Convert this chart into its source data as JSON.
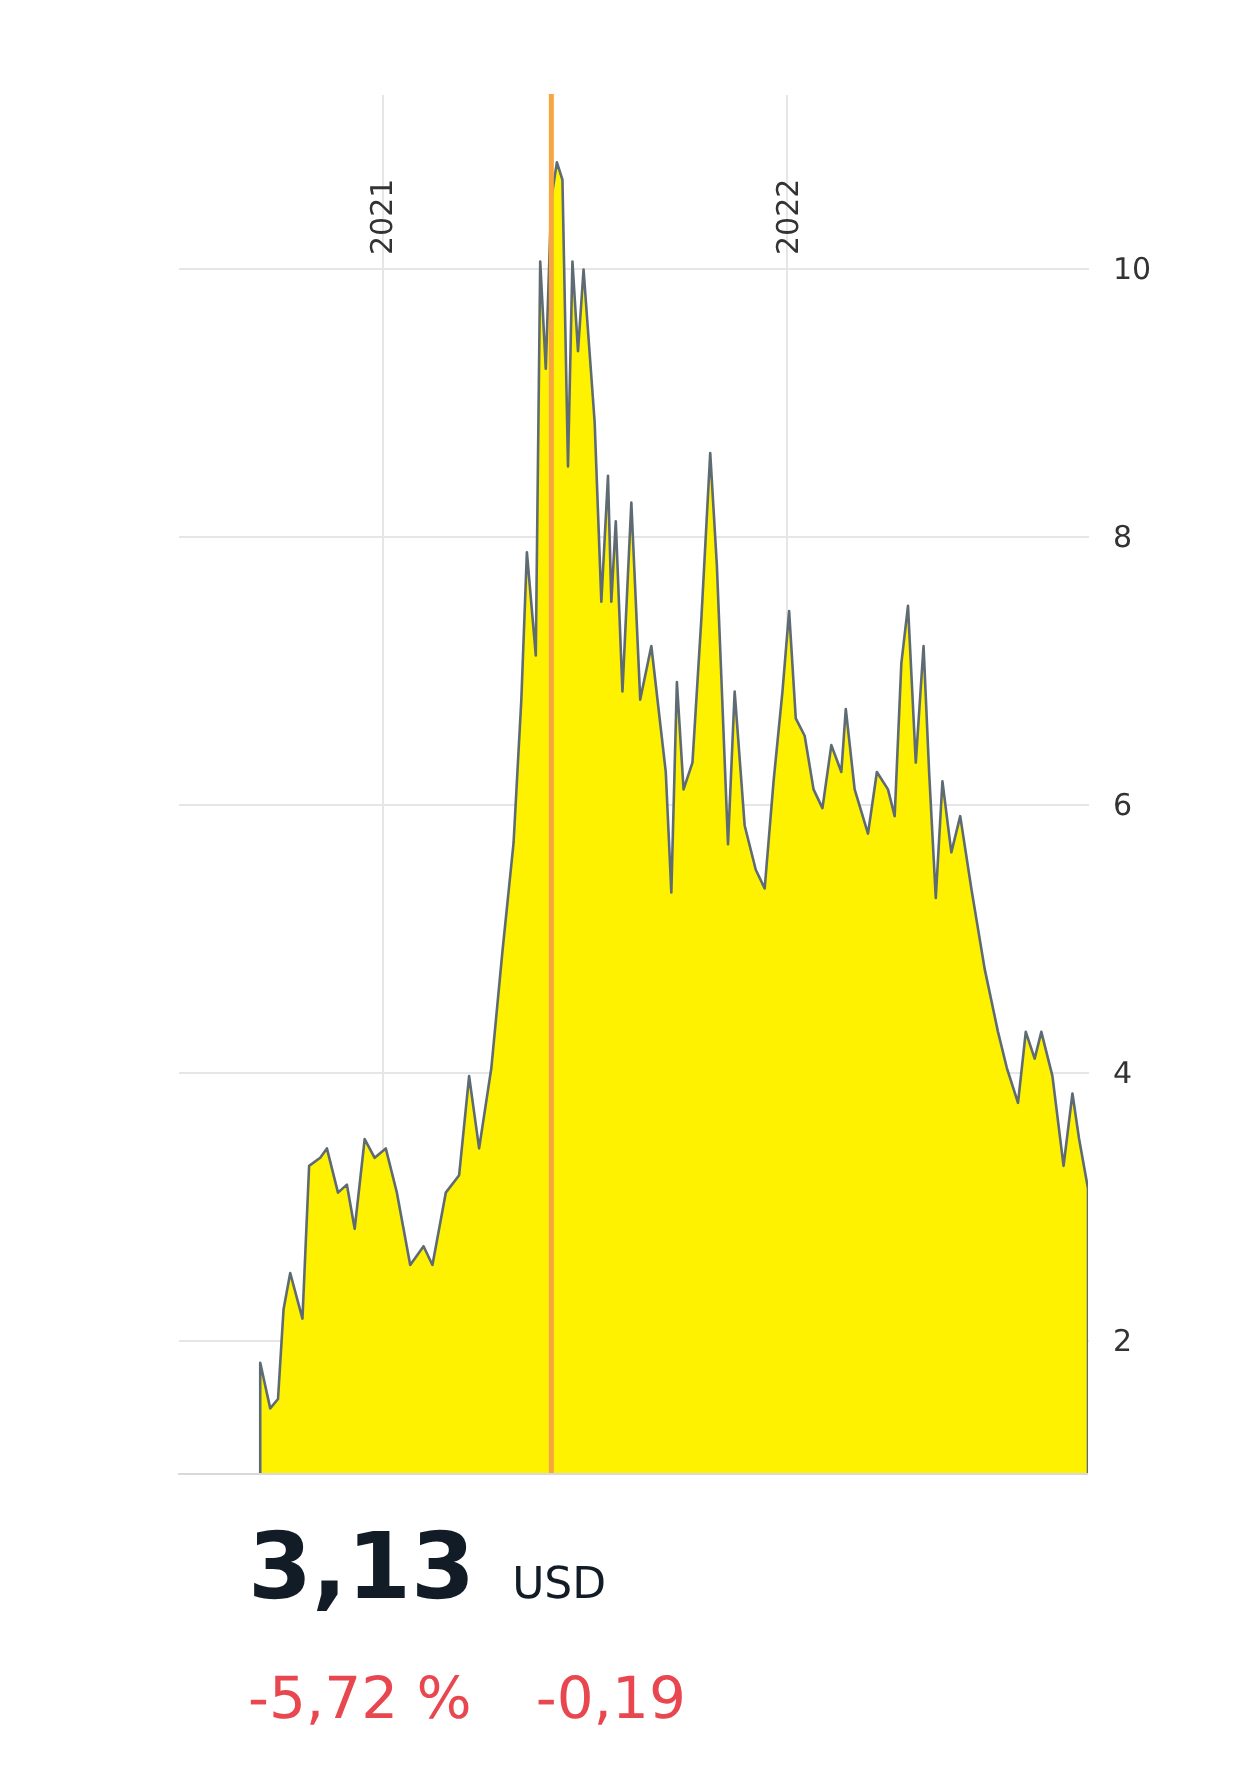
{
  "chart_data": {
    "type": "area",
    "x": [
      "2020-09-14",
      "2020-09-23",
      "2020-09-30",
      "2020-10-05",
      "2020-10-11",
      "2020-10-22",
      "2020-10-28",
      "2020-11-07",
      "2020-11-13",
      "2020-11-23",
      "2020-12-01",
      "2020-12-08",
      "2020-12-17",
      "2020-12-26",
      "2021-01-05",
      "2021-01-15",
      "2021-01-27",
      "2021-02-08",
      "2021-02-16",
      "2021-02-28",
      "2021-03-12",
      "2021-03-21",
      "2021-03-30",
      "2021-04-10",
      "2021-04-20",
      "2021-04-30",
      "2021-05-07",
      "2021-05-12",
      "2021-05-20",
      "2021-05-24",
      "2021-05-29",
      "2021-06-03",
      "2021-06-08",
      "2021-06-13",
      "2021-06-18",
      "2021-06-22",
      "2021-06-27",
      "2021-07-02",
      "2021-07-12",
      "2021-07-18",
      "2021-07-24",
      "2021-07-27",
      "2021-07-31",
      "2021-08-06",
      "2021-08-14",
      "2021-08-22",
      "2021-09-01",
      "2021-09-14",
      "2021-09-19",
      "2021-09-24",
      "2021-09-30",
      "2021-10-08",
      "2021-10-16",
      "2021-10-24",
      "2021-10-30",
      "2021-11-09",
      "2021-11-15",
      "2021-11-24",
      "2021-12-04",
      "2021-12-12",
      "2021-12-20",
      "2021-12-28",
      "2022-01-03",
      "2022-01-09",
      "2022-01-17",
      "2022-01-25",
      "2022-02-02",
      "2022-02-10",
      "2022-02-19",
      "2022-02-23",
      "2022-03-03",
      "2022-03-15",
      "2022-03-23",
      "2022-04-02",
      "2022-04-08",
      "2022-04-14",
      "2022-04-20",
      "2022-04-27",
      "2022-05-04",
      "2022-05-09",
      "2022-05-15",
      "2022-05-21",
      "2022-05-29",
      "2022-06-06",
      "2022-06-16",
      "2022-06-28",
      "2022-07-10",
      "2022-07-18",
      "2022-07-28",
      "2022-08-04",
      "2022-08-12",
      "2022-08-18",
      "2022-08-28",
      "2022-09-07",
      "2022-09-15",
      "2022-09-21",
      "2022-09-29"
    ],
    "series": [
      {
        "color": "#fff200",
        "values": [
          1.83,
          1.49,
          1.56,
          2.23,
          2.5,
          2.16,
          3.3,
          3.36,
          3.43,
          3.1,
          3.16,
          2.83,
          3.5,
          3.36,
          3.43,
          3.1,
          2.56,
          2.7,
          2.56,
          3.1,
          3.23,
          3.97,
          3.43,
          4.03,
          4.9,
          5.71,
          6.78,
          7.88,
          7.11,
          10.05,
          9.25,
          10.52,
          10.79,
          10.66,
          8.52,
          10.05,
          9.38,
          9.99,
          8.85,
          7.51,
          8.45,
          7.51,
          8.11,
          6.84,
          8.25,
          6.78,
          7.18,
          6.24,
          5.34,
          6.91,
          6.11,
          6.31,
          7.38,
          8.62,
          7.78,
          5.7,
          6.84,
          5.84,
          5.51,
          5.37,
          6.17,
          6.84,
          7.44,
          6.64,
          6.51,
          6.11,
          5.97,
          6.44,
          6.24,
          6.71,
          6.11,
          5.78,
          6.24,
          6.11,
          5.91,
          7.05,
          7.48,
          6.31,
          7.18,
          6.24,
          5.3,
          6.17,
          5.64,
          5.91,
          5.37,
          4.77,
          4.3,
          4.03,
          3.77,
          4.3,
          4.1,
          4.3,
          3.97,
          3.3,
          3.84,
          3.5,
          3.13
        ]
      }
    ],
    "xlim": [
      "2020-07-02",
      "2022-09-29"
    ],
    "xticks": [
      {
        "value": "2021-01-01",
        "label": "2021"
      },
      {
        "value": "2022-01-01",
        "label": "2022"
      }
    ],
    "ylim": [
      1,
      11.3
    ],
    "yticks": [
      2,
      4,
      6,
      8,
      10
    ],
    "grid": true,
    "ref_lines": [
      {
        "axis": "x",
        "value": "2021-06-03",
        "color": "#f7a541"
      }
    ],
    "annotations": [
      "3,13",
      "USD",
      "-5,72 %",
      "-0,19"
    ]
  }
}
